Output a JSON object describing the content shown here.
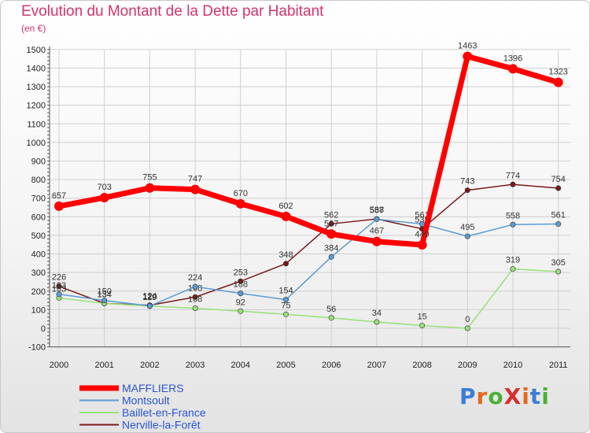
{
  "title": "Evolution du Montant de la Dette par Habitant",
  "subtitle": "(en €)",
  "logo_text": "ProXiti",
  "chart_data": {
    "type": "line",
    "x": [
      "2000",
      "2001",
      "2002",
      "2003",
      "2004",
      "2005",
      "2006",
      "2007",
      "2008",
      "2009",
      "2010",
      "2011"
    ],
    "ylim": [
      -100,
      1500
    ],
    "yticks": [
      -100,
      0,
      100,
      200,
      300,
      400,
      500,
      600,
      700,
      800,
      900,
      1000,
      1100,
      1200,
      1300,
      1400,
      1500
    ],
    "grid": true,
    "legend_position": "bottom-left",
    "series": [
      {
        "name": "MAFFLIERS",
        "color": "#ff0000",
        "values": [
          657,
          703,
          755,
          747,
          670,
          602,
          507,
          467,
          449,
          1463,
          1396,
          1323
        ]
      },
      {
        "name": "Montsoult",
        "color": "#5b9bd5",
        "values": [
          183,
          150,
          120,
          224,
          188,
          154,
          384,
          587,
          561,
          495,
          558,
          561
        ]
      },
      {
        "name": "Baillet-en-France",
        "color": "#99e07a",
        "values": [
          163,
          134,
          119,
          108,
          92,
          75,
          56,
          34,
          15,
          0,
          319,
          305
        ]
      },
      {
        "name": "Nerville-la-Forêt",
        "color": "#7a1a1a",
        "values": [
          226,
          134,
          124,
          168,
          253,
          348,
          562,
          588,
          535,
          743,
          774,
          754
        ]
      }
    ]
  }
}
